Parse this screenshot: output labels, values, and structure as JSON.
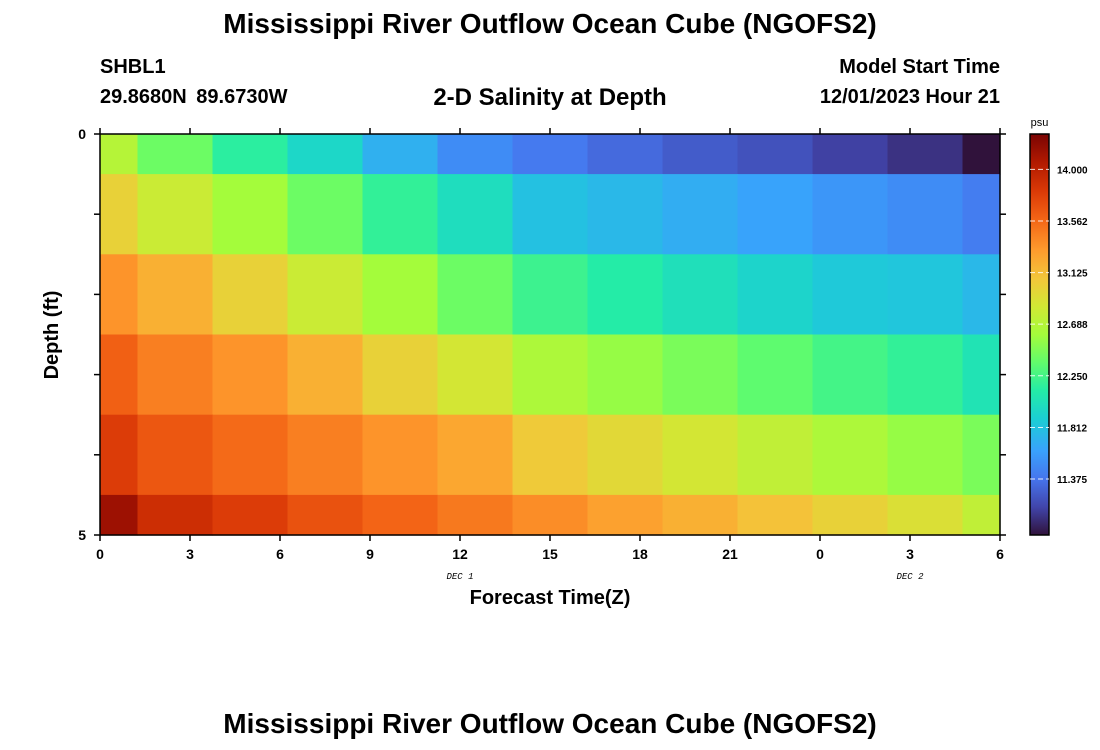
{
  "header": {
    "title": "Mississippi River Outflow Ocean Cube (NGOFS2)",
    "station_id": "SHBL1",
    "station_coords": "29.8680N  89.6730W",
    "subtitle": "2-D Salinity at Depth",
    "model_start_label": "Model Start Time",
    "model_start_value": "12/01/2023 Hour 21"
  },
  "footer": {
    "title": "Mississippi River Outflow Ocean Cube (NGOFS2)"
  },
  "chart_data": {
    "type": "heatmap",
    "title": "2-D Salinity at Depth",
    "xlabel": "Forecast Time(Z)",
    "ylabel": "Depth (ft)",
    "x_tick_labels": [
      "0",
      "3",
      "6",
      "9",
      "12",
      "15",
      "18",
      "21",
      "0",
      "3",
      "6"
    ],
    "x_range_hours": [
      0,
      30
    ],
    "date_labels": [
      {
        "label": "DEC 1",
        "at_hour": 12
      },
      {
        "label": "DEC 2",
        "at_hour": 27
      }
    ],
    "y_tick_labels": [
      "0",
      "5"
    ],
    "y_range": [
      0,
      5
    ],
    "times_hours": [
      0,
      2.5,
      5,
      7.5,
      10,
      12.5,
      15,
      17.5,
      20,
      22.5,
      25,
      27.5,
      30
    ],
    "depth_rows": [
      "0.0-0.5",
      "0.5-1.5",
      "1.5-2.5",
      "2.5-3.5",
      "3.5-4.5",
      "4.5-5.0"
    ],
    "values": [
      [
        12.69,
        12.4,
        12.15,
        11.95,
        11.7,
        11.5,
        11.4,
        11.32,
        11.25,
        11.2,
        11.12,
        11.05,
        10.85
      ],
      [
        13.0,
        12.8,
        12.6,
        12.4,
        12.18,
        12.0,
        11.8,
        11.75,
        11.68,
        11.62,
        11.55,
        11.5,
        11.42
      ],
      [
        13.35,
        13.2,
        13.0,
        12.8,
        12.6,
        12.4,
        12.22,
        12.12,
        12.02,
        11.93,
        11.85,
        11.83,
        11.75
      ],
      [
        13.6,
        13.45,
        13.35,
        13.2,
        13.0,
        12.85,
        12.65,
        12.55,
        12.45,
        12.35,
        12.25,
        12.18,
        12.05
      ],
      [
        13.8,
        13.65,
        13.55,
        13.45,
        13.35,
        13.25,
        13.05,
        12.95,
        12.85,
        12.75,
        12.65,
        12.55,
        12.45
      ],
      [
        14.15,
        13.9,
        13.8,
        13.68,
        13.58,
        13.48,
        13.38,
        13.28,
        13.2,
        13.1,
        13.0,
        12.9,
        12.75
      ]
    ],
    "colorbar": {
      "unit": "psu",
      "tick_labels": [
        "14.000",
        "13.562",
        "13.125",
        "12.688",
        "12.250",
        "11.812",
        "11.375"
      ],
      "min": 10.9,
      "max": 14.3
    }
  }
}
